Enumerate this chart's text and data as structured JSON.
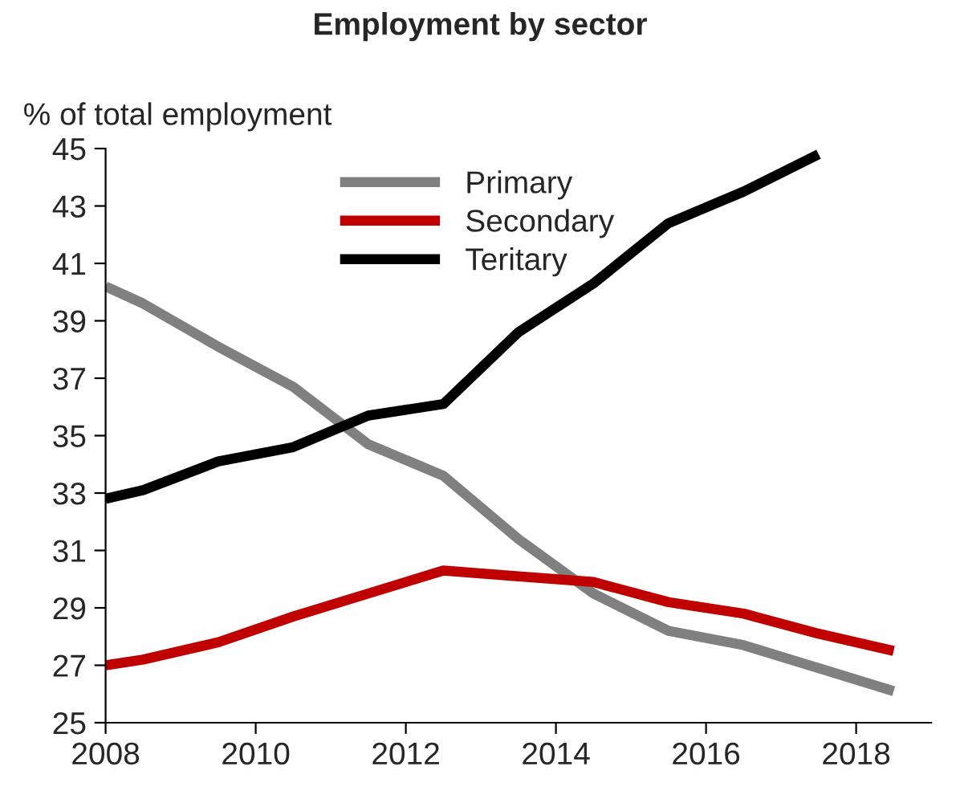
{
  "chart_data": {
    "type": "line",
    "title": "Employment by sector",
    "ylabel": "% of total employment",
    "x": [
      2008,
      2008.5,
      2009.5,
      2010.5,
      2011.5,
      2012.5,
      2013.5,
      2014.5,
      2015.5,
      2016.5,
      2017.5,
      2018.5
    ],
    "series": [
      {
        "name": "Primary",
        "color": "#808080",
        "values": [
          40.2,
          39.6,
          38.1,
          36.7,
          34.7,
          33.6,
          31.4,
          29.5,
          28.2,
          27.7,
          26.9,
          26.1
        ]
      },
      {
        "name": "Secondary",
        "color": "#c00000",
        "values": [
          27.0,
          27.2,
          27.8,
          28.7,
          29.5,
          30.3,
          30.1,
          29.9,
          29.2,
          28.8,
          28.1,
          27.5
        ]
      },
      {
        "name": "Teritary",
        "color": "#000000",
        "values": [
          32.8,
          33.1,
          34.1,
          34.6,
          35.7,
          36.1,
          38.6,
          40.3,
          42.4,
          43.5,
          44.8,
          null
        ]
      }
    ],
    "xlim": [
      2008,
      2019
    ],
    "xticks": [
      2008,
      2010,
      2012,
      2014,
      2016,
      2018
    ],
    "ylim": [
      25,
      45
    ],
    "yticks": [
      25,
      27,
      29,
      31,
      33,
      35,
      37,
      39,
      41,
      43,
      45
    ],
    "grid": false,
    "legend": "top",
    "marker": "none",
    "line_style": "solid"
  }
}
